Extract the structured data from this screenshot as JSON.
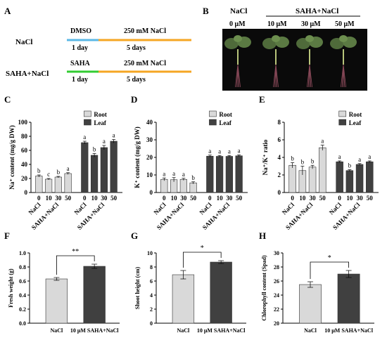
{
  "panels": {
    "A": "A",
    "B": "B",
    "C": "C",
    "D": "D",
    "E": "E",
    "F": "F",
    "G": "G",
    "H": "H"
  },
  "colors": {
    "dmso": "#5bb8e6",
    "saha": "#33cc33",
    "nacl_line": "#f5a623",
    "root_bar": "#d9d9d9",
    "leaf_bar": "#404040",
    "photo_bg": "#0a0a0a"
  },
  "scheme": {
    "rows": [
      {
        "label": "NaCl",
        "pre": "DMSO",
        "pre_day": "1 day",
        "treat": "250 mM NaCl",
        "treat_days": "5 days"
      },
      {
        "label": "SAHA+NaCl",
        "pre": "SAHA",
        "pre_day": "1 day",
        "treat": "250 mM NaCl",
        "treat_days": "5 days"
      }
    ]
  },
  "photo": {
    "header_left": "NaCl",
    "header_right": "SAHA+NaCl",
    "concentrations": [
      "0 μM",
      "10 μM",
      "30 μM",
      "50 μM"
    ]
  },
  "legend": {
    "root": "Root",
    "leaf": "Leaf"
  },
  "group_labels": {
    "nacl": "NaCl",
    "saha": "SAHA+NaCl"
  },
  "chart_data": [
    {
      "id": "C",
      "type": "bar",
      "ylabel": "Na⁺ content (mg/g DW)",
      "ylim": [
        0,
        100
      ],
      "yticks": [
        0,
        20,
        40,
        60,
        80,
        100
      ],
      "categories": [
        "0",
        "10",
        "30",
        "50"
      ],
      "legend_position": "top-right",
      "series": [
        {
          "name": "Root",
          "values": [
            23.5,
            19.0,
            22.0,
            27.0
          ],
          "errors": [
            1.5,
            1.0,
            1.0,
            1.2
          ],
          "letters": [
            "b",
            "c",
            "b",
            "a"
          ]
        },
        {
          "name": "Leaf",
          "values": [
            71.0,
            53.0,
            64.0,
            73.0
          ],
          "errors": [
            2.0,
            2.5,
            3.0,
            2.5
          ],
          "letters": [
            "a",
            "b",
            "a",
            "a"
          ]
        }
      ]
    },
    {
      "id": "D",
      "type": "bar",
      "ylabel": "K⁺ content (mg/g DW)",
      "ylim": [
        0,
        40
      ],
      "yticks": [
        0,
        10,
        20,
        30,
        40
      ],
      "categories": [
        "0",
        "10",
        "30",
        "50"
      ],
      "legend_position": "top-right",
      "series": [
        {
          "name": "Root",
          "values": [
            7.5,
            7.3,
            7.5,
            5.5
          ],
          "errors": [
            0.8,
            1.2,
            0.6,
            0.6
          ],
          "letters": [
            "a",
            "a",
            "a",
            "b"
          ]
        },
        {
          "name": "Leaf",
          "values": [
            20.7,
            20.6,
            20.6,
            20.9
          ],
          "errors": [
            0.6,
            0.5,
            0.5,
            0.5
          ],
          "letters": [
            "a",
            "a",
            "a",
            "a"
          ]
        }
      ]
    },
    {
      "id": "E",
      "type": "bar",
      "ylabel": "Na⁺/K⁺ ratio",
      "ylim": [
        0,
        8
      ],
      "yticks": [
        0,
        2,
        4,
        6,
        8
      ],
      "categories": [
        "0",
        "10",
        "30",
        "50"
      ],
      "legend_position": "top-right",
      "series": [
        {
          "name": "Root",
          "values": [
            3.1,
            2.5,
            2.9,
            5.1
          ],
          "errors": [
            0.3,
            0.5,
            0.2,
            0.3
          ],
          "letters": [
            "b",
            "b",
            "b",
            "a"
          ]
        },
        {
          "name": "Leaf",
          "values": [
            3.5,
            2.5,
            3.2,
            3.5
          ],
          "errors": [
            0.1,
            0.1,
            0.1,
            0.1
          ],
          "letters": [
            "a",
            "b",
            "a",
            "a"
          ]
        }
      ]
    },
    {
      "id": "F",
      "type": "bar",
      "ylabel": "Fresh weight (g)",
      "ylim": [
        0,
        1.0
      ],
      "yticks": [
        "0.0",
        "0.2",
        "0.4",
        "0.6",
        "0.8",
        "1.0"
      ],
      "categories": [
        "NaCl",
        "10 μM SAHA+NaCl"
      ],
      "values": [
        0.63,
        0.81
      ],
      "errors": [
        0.02,
        0.03
      ],
      "significance": "**"
    },
    {
      "id": "G",
      "type": "bar",
      "ylabel": "Shoot height (cm)",
      "ylim": [
        0,
        10
      ],
      "yticks": [
        "0",
        "2",
        "4",
        "6",
        "8",
        "10"
      ],
      "categories": [
        "NaCl",
        "10 μM SAHA+NaCl"
      ],
      "values": [
        6.9,
        8.7
      ],
      "errors": [
        0.6,
        0.2
      ],
      "significance": "*"
    },
    {
      "id": "H",
      "type": "bar",
      "ylabel": "Chlorophyll content (Spad)",
      "ylim": [
        20,
        30
      ],
      "yticks": [
        "20",
        "22",
        "24",
        "26",
        "28",
        "30"
      ],
      "categories": [
        "NaCl",
        "10 μM SAHA+NaCl"
      ],
      "values": [
        25.5,
        27.0
      ],
      "errors": [
        0.4,
        0.5
      ],
      "significance": "*"
    }
  ]
}
